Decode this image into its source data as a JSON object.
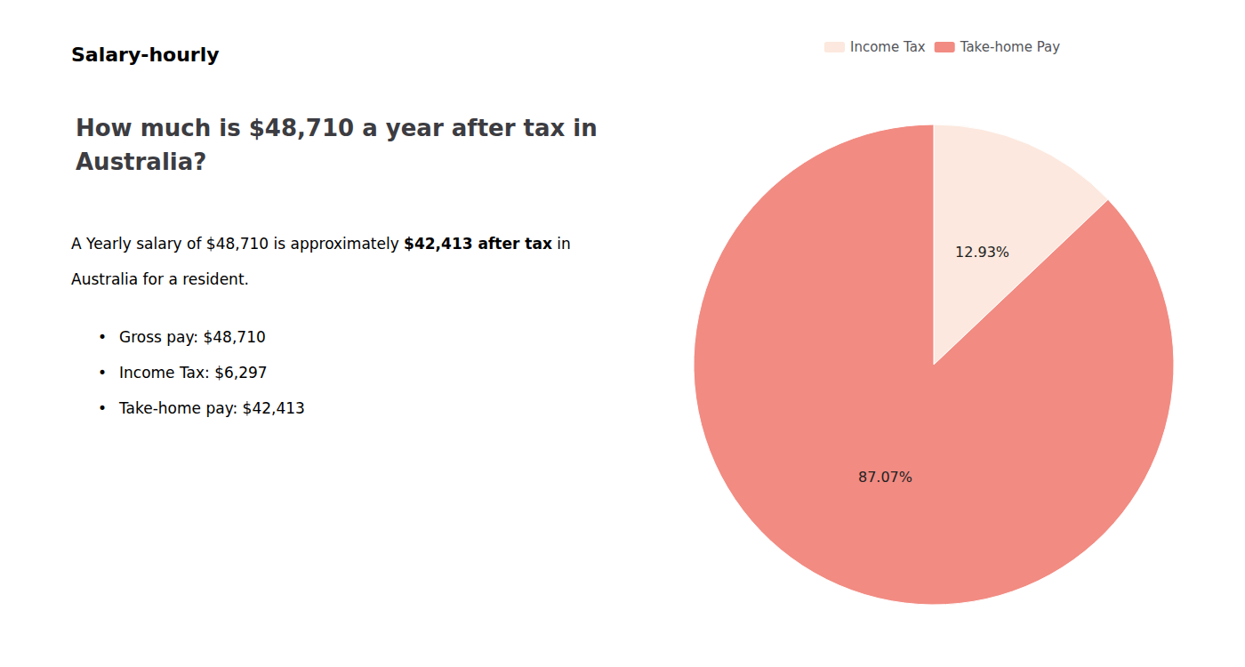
{
  "chart_data": {
    "type": "pie",
    "title": "How much is $48,710 a year after tax in\nAustralia?",
    "categories": [
      "Income Tax",
      "Take-home Pay"
    ],
    "values": [
      12.93,
      87.07
    ],
    "value_labels": [
      "12.93%",
      "87.07%"
    ],
    "colors": [
      "#fce8de",
      "#f28b82"
    ],
    "data_labels": true,
    "legend": "top",
    "annotations": [
      [
        {
          "text": "S",
          "color": "#cc1111"
        },
        {
          "text": "alary-hourly"
        }
      ],
      [
        {
          "text": "A Yearly salary of $48,710 is approximately "
        },
        {
          "text": "$42,413 after tax",
          "color": "#cc1111"
        },
        {
          "text": " in"
        }
      ],
      [
        {
          "text": "Australia for a resident."
        }
      ],
      [
        {
          "text": "•"
        },
        {
          "text": "Gross pay: $48,710"
        }
      ],
      [
        {
          "text": "•"
        },
        {
          "text": "Income Tax: $6,297"
        }
      ],
      [
        {
          "text": "•"
        },
        {
          "text": "Take-home pay: $42,413"
        }
      ]
    ]
  }
}
